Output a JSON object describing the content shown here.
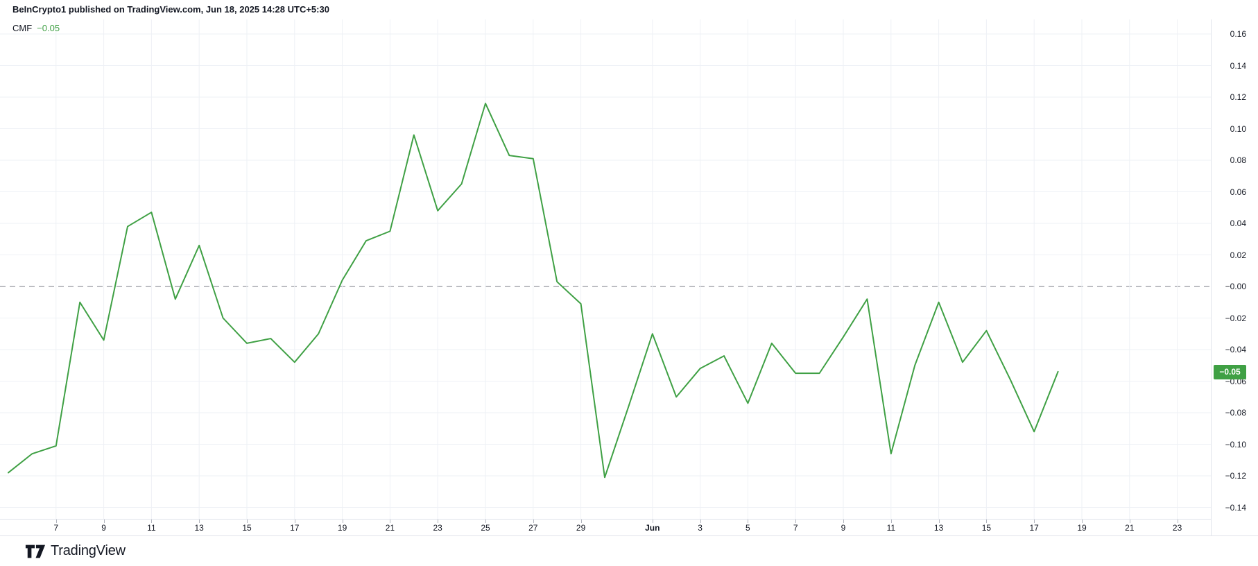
{
  "header": {
    "title": "BeInCrypto1 published on TradingView.com, Jun 18, 2025 14:28 UTC+5:30"
  },
  "legend": {
    "indicator": "CMF",
    "value": "−0.05"
  },
  "chart_data": {
    "type": "line",
    "title": "CMF",
    "line_color": "#3fa044",
    "grid_color": "#eef1f6",
    "zero_line": {
      "value": 0,
      "style": "dashed",
      "color": "#787b86"
    },
    "ylim": [
      -0.15,
      0.17
    ],
    "grid": true,
    "legend_position": "top-left",
    "x": [
      "May 5",
      "May 6",
      "May 7",
      "May 8",
      "May 9",
      "May 10",
      "May 11",
      "May 12",
      "May 13",
      "May 14",
      "May 15",
      "May 16",
      "May 17",
      "May 18",
      "May 19",
      "May 20",
      "May 21",
      "May 22",
      "May 23",
      "May 24",
      "May 25",
      "May 26",
      "May 27",
      "May 28",
      "May 29",
      "May 30",
      "May 31",
      "Jun 1",
      "Jun 2",
      "Jun 3",
      "Jun 4",
      "Jun 5",
      "Jun 6",
      "Jun 7",
      "Jun 8",
      "Jun 9",
      "Jun 10",
      "Jun 11",
      "Jun 12",
      "Jun 13",
      "Jun 14",
      "Jun 15",
      "Jun 16",
      "Jun 17",
      "Jun 18"
    ],
    "values": [
      -0.118,
      -0.106,
      -0.101,
      -0.01,
      -0.034,
      0.038,
      0.047,
      -0.008,
      0.026,
      -0.02,
      -0.036,
      -0.033,
      -0.048,
      -0.03,
      0.004,
      0.029,
      0.035,
      0.096,
      0.048,
      0.065,
      0.116,
      0.083,
      0.081,
      0.003,
      -0.011,
      -0.121,
      -0.076,
      -0.03,
      -0.07,
      -0.052,
      -0.044,
      -0.074,
      -0.036,
      -0.055,
      -0.055,
      -0.032,
      -0.008,
      -0.106,
      -0.05,
      -0.01,
      -0.048,
      -0.028,
      -0.059,
      -0.092,
      -0.054
    ],
    "y_ticks": [
      {
        "label": "0.16",
        "value": 0.16
      },
      {
        "label": "0.14",
        "value": 0.14
      },
      {
        "label": "0.12",
        "value": 0.12
      },
      {
        "label": "0.10",
        "value": 0.1
      },
      {
        "label": "0.08",
        "value": 0.08
      },
      {
        "label": "0.06",
        "value": 0.06
      },
      {
        "label": "0.04",
        "value": 0.04
      },
      {
        "label": "0.02",
        "value": 0.02
      },
      {
        "label": "−0.00",
        "value": 0
      },
      {
        "label": "−0.02",
        "value": -0.02
      },
      {
        "label": "−0.04",
        "value": -0.04
      },
      {
        "label": "−0.06",
        "value": -0.06
      },
      {
        "label": "−0.08",
        "value": -0.08
      },
      {
        "label": "−0.10",
        "value": -0.1
      },
      {
        "label": "−0.12",
        "value": -0.12
      },
      {
        "label": "−0.14",
        "value": -0.14
      }
    ],
    "x_ticks": [
      {
        "label": "7",
        "index": 2
      },
      {
        "label": "9",
        "index": 4
      },
      {
        "label": "11",
        "index": 6
      },
      {
        "label": "13",
        "index": 8
      },
      {
        "label": "15",
        "index": 10
      },
      {
        "label": "17",
        "index": 12
      },
      {
        "label": "19",
        "index": 14
      },
      {
        "label": "21",
        "index": 16
      },
      {
        "label": "23",
        "index": 18
      },
      {
        "label": "25",
        "index": 20
      },
      {
        "label": "27",
        "index": 22
      },
      {
        "label": "29",
        "index": 24
      },
      {
        "label": "Jun",
        "index": 27,
        "bold": true
      },
      {
        "label": "3",
        "index": 29
      },
      {
        "label": "5",
        "index": 31
      },
      {
        "label": "7",
        "index": 33
      },
      {
        "label": "9",
        "index": 35
      },
      {
        "label": "11",
        "index": 37
      },
      {
        "label": "13",
        "index": 39
      },
      {
        "label": "15",
        "index": 41
      },
      {
        "label": "17",
        "index": 43
      },
      {
        "label": "19",
        "index": 45
      },
      {
        "label": "21",
        "index": 47
      },
      {
        "label": "23",
        "index": 49
      }
    ],
    "badge": {
      "label": "−0.05",
      "value": -0.054,
      "bg": "#3fa044",
      "text_color": "#ffffff"
    }
  },
  "footer": {
    "logo_text": "TradingView"
  }
}
